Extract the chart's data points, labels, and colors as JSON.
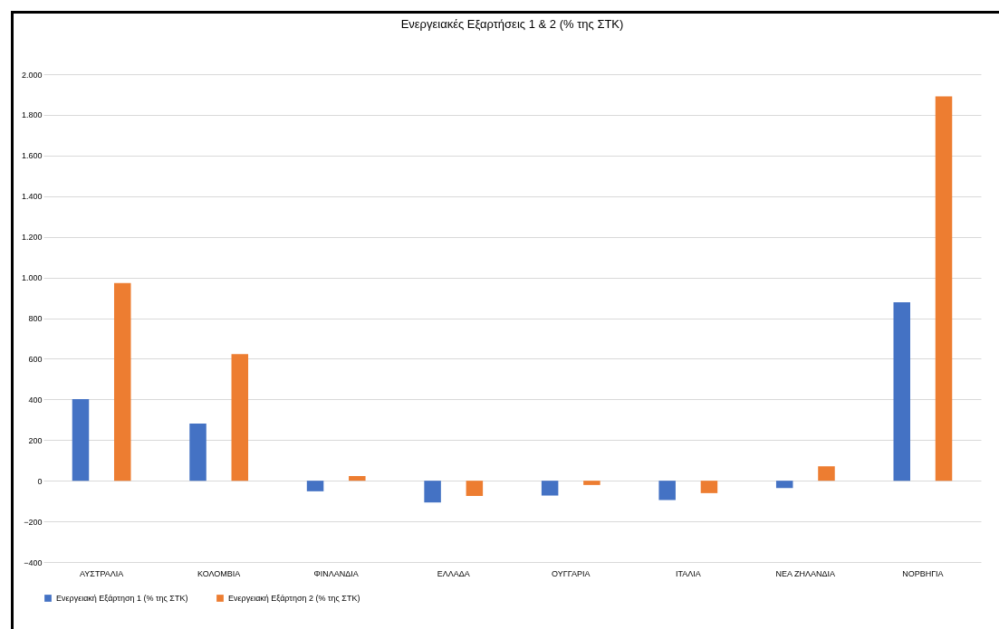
{
  "chart_data": {
    "type": "bar",
    "title": "Ενεργειακές Εξαρτήσεις 1 & 2 (% της ΣΤΚ)",
    "categories": [
      "ΑΥΣΤΡΑΛΙΑ",
      "ΚΟΛΟΜΒΙΑ",
      "ΦΙΝΛΑΝΔΙΑ",
      "ΕΛΛΑΔΑ",
      "ΟΥΓΓΑΡΙΑ",
      "ΙΤΑΛΙΑ",
      "ΝΕΑ ΖΗΛΑΝΔΙΑ",
      "ΝΟΡΒΗΓΙΑ"
    ],
    "series": [
      {
        "name": "Ενεργειακή Εξάρτηση 1 (% της ΣΤΚ)",
        "color": "#4472c4",
        "values": [
          401,
          281,
          -52,
          -107,
          -73,
          -95,
          -36,
          878
        ]
      },
      {
        "name": "Ενεργειακή Εξάρτηση 2 (% της ΣΤΚ)",
        "color": "#ed7d31",
        "values": [
          973,
          623,
          23,
          -75,
          -21,
          -61,
          71,
          1891
        ]
      }
    ],
    "ylim": [
      -400,
      2000
    ],
    "yticks": [
      -400,
      -200,
      0,
      200,
      400,
      600,
      800,
      {
        "value": 1000,
        "label": "1.000"
      },
      {
        "value": 1200,
        "label": "1.200"
      },
      {
        "value": 1400,
        "label": "1.400"
      },
      {
        "value": 1600,
        "label": "1.600"
      },
      {
        "value": 1800,
        "label": "1.800"
      },
      {
        "value": 2000,
        "label": "2.000"
      }
    ],
    "grid": "y",
    "legend": "bottom"
  }
}
